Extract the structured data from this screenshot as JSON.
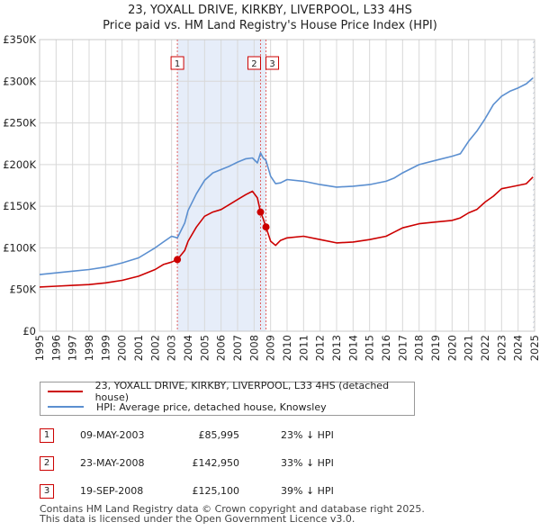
{
  "title_line1": "23, YOXALL DRIVE, KIRKBY, LIVERPOOL, L33 4HS",
  "title_line2": "Price paid vs. HM Land Registry's House Price Index (HPI)",
  "legend": {
    "property": "23, YOXALL DRIVE, KIRKBY, LIVERPOOL, L33 4HS (detached house)",
    "hpi": "HPI: Average price, detached house, Knowsley"
  },
  "colors": {
    "property": "#cc0000",
    "hpi": "#5b8fd0",
    "shade": "#e6edf9",
    "grid": "#d8d8d8"
  },
  "sales": [
    {
      "id": "1",
      "date": "09-MAY-2003",
      "price": "£85,995",
      "hpi": "23% ↓ HPI"
    },
    {
      "id": "2",
      "date": "23-MAY-2008",
      "price": "£142,950",
      "hpi": "33% ↓ HPI"
    },
    {
      "id": "3",
      "date": "19-SEP-2008",
      "price": "£125,100",
      "hpi": "39% ↓ HPI"
    }
  ],
  "footer": {
    "line1": "Contains HM Land Registry data © Crown copyright and database right 2025.",
    "line2": "This data is licensed under the Open Government Licence v3.0."
  },
  "chart_data": {
    "type": "line",
    "title": "23, YOXALL DRIVE, KIRKBY, LIVERPOOL, L33 4HS",
    "subtitle": "Price paid vs. HM Land Registry's House Price Index (HPI)",
    "xlabel": "",
    "ylabel": "",
    "xlim": [
      1995,
      2025
    ],
    "ylim": [
      0,
      350000
    ],
    "y_ticks": [
      {
        "value": 0,
        "label": "£0"
      },
      {
        "value": 50000,
        "label": "£50K"
      },
      {
        "value": 100000,
        "label": "£100K"
      },
      {
        "value": 150000,
        "label": "£150K"
      },
      {
        "value": 200000,
        "label": "£200K"
      },
      {
        "value": 250000,
        "label": "£250K"
      },
      {
        "value": 300000,
        "label": "£300K"
      },
      {
        "value": 350000,
        "label": "£350K"
      }
    ],
    "x_ticks": [
      "1995",
      "1996",
      "1997",
      "1998",
      "1999",
      "2000",
      "2001",
      "2002",
      "2003",
      "2004",
      "2005",
      "2006",
      "2007",
      "2008",
      "2009",
      "2010",
      "2011",
      "2012",
      "2013",
      "2014",
      "2015",
      "2016",
      "2017",
      "2018",
      "2019",
      "2020",
      "2021",
      "2022",
      "2023",
      "2024",
      "2025"
    ],
    "grid": true,
    "shaded_ranges": [
      [
        2003.35,
        2008.72
      ]
    ],
    "hatched_range": [
      2024.9,
      2025.0
    ],
    "sale_markers": [
      {
        "label": "1",
        "x": 2003.35,
        "y": 85995
      },
      {
        "label": "2",
        "x": 2008.39,
        "y": 142950
      },
      {
        "label": "3",
        "x": 2008.72,
        "y": 125100
      }
    ],
    "series": [
      {
        "name": "23, YOXALL DRIVE, KIRKBY, LIVERPOOL, L33 4HS (detached house)",
        "color": "#cc0000",
        "x": [
          1995,
          1996,
          1997,
          1998,
          1999,
          2000,
          2001,
          2002,
          2002.5,
          2003,
          2003.35,
          2003.8,
          2004,
          2004.5,
          2005,
          2005.5,
          2006,
          2006.5,
          2007,
          2007.5,
          2007.9,
          2008.2,
          2008.39,
          2008.55,
          2008.72,
          2009,
          2009.3,
          2009.6,
          2010,
          2011,
          2012,
          2013,
          2014,
          2015,
          2016,
          2016.5,
          2017,
          2018,
          2019,
          2020,
          2020.5,
          2021,
          2021.5,
          2022,
          2022.5,
          2023,
          2023.5,
          2024,
          2024.5,
          2024.9
        ],
        "y": [
          53000,
          54000,
          55000,
          56000,
          58000,
          61000,
          66000,
          74000,
          80000,
          83000,
          85995,
          97000,
          108000,
          125000,
          138000,
          143000,
          146000,
          152000,
          158000,
          164000,
          168000,
          160000,
          142950,
          135000,
          125100,
          108000,
          103000,
          109000,
          112000,
          114000,
          110000,
          106000,
          107000,
          110000,
          114000,
          119000,
          124000,
          129000,
          131000,
          133000,
          136000,
          142000,
          146000,
          155000,
          162000,
          171000,
          173000,
          175000,
          177000,
          185000
        ]
      },
      {
        "name": "HPI: Average price, detached house, Knowsley",
        "color": "#5b8fd0",
        "x": [
          1995,
          1996,
          1997,
          1998,
          1999,
          2000,
          2001,
          2002,
          2002.5,
          2003,
          2003.35,
          2003.8,
          2004,
          2004.5,
          2005,
          2005.5,
          2006,
          2006.5,
          2007,
          2007.5,
          2007.9,
          2008.2,
          2008.39,
          2008.55,
          2008.72,
          2009,
          2009.3,
          2009.6,
          2010,
          2011,
          2012,
          2013,
          2014,
          2015,
          2016,
          2016.5,
          2017,
          2018,
          2019,
          2020,
          2020.5,
          2021,
          2021.5,
          2022,
          2022.5,
          2023,
          2023.5,
          2024,
          2024.5,
          2024.9
        ],
        "y": [
          68000,
          70000,
          72000,
          74000,
          77000,
          82000,
          88000,
          100000,
          107000,
          114000,
          112000,
          130000,
          145000,
          165000,
          181000,
          190000,
          194000,
          198000,
          203000,
          207000,
          208000,
          202000,
          214000,
          208000,
          205000,
          186000,
          177000,
          178000,
          182000,
          180000,
          176000,
          173000,
          174000,
          176000,
          180000,
          184000,
          190000,
          200000,
          205000,
          210000,
          213000,
          228000,
          240000,
          255000,
          272000,
          282000,
          288000,
          292000,
          297000,
          304000
        ]
      }
    ]
  }
}
